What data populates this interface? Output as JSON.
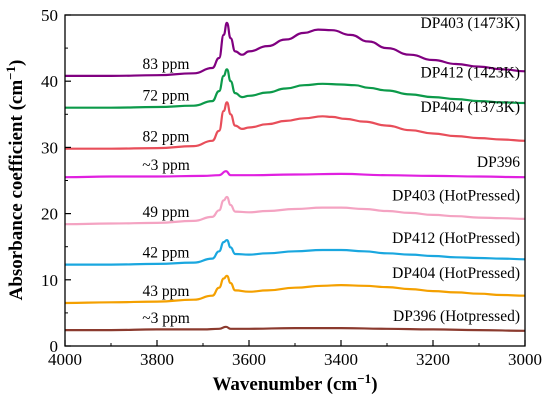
{
  "chart_data": {
    "type": "line",
    "xlabel": "Wavenumber (cm",
    "xlabel_sup": "−1",
    "xlabel_close": ")",
    "ylabel": "Absorbance coefficient (cm",
    "ylabel_sup": "−1",
    "ylabel_close": ")",
    "xlim": [
      4000,
      3000
    ],
    "ylim": [
      0,
      50
    ],
    "xticks": [
      4000,
      3800,
      3600,
      3400,
      3200,
      3000
    ],
    "yticks": [
      0,
      10,
      20,
      30,
      40,
      50
    ],
    "grid": false,
    "series": [
      {
        "name": "DP403 (1473K)",
        "ppm": "83 ppm",
        "color": "#800080",
        "points": [
          [
            4000,
            40.8
          ],
          [
            3900,
            40.8
          ],
          [
            3800,
            40.9
          ],
          [
            3720,
            41.2
          ],
          [
            3680,
            42.0
          ],
          [
            3665,
            43.5
          ],
          [
            3655,
            47.0
          ],
          [
            3648,
            48.8
          ],
          [
            3640,
            46.5
          ],
          [
            3630,
            44.5
          ],
          [
            3615,
            44.0
          ],
          [
            3600,
            44.5
          ],
          [
            3560,
            45.3
          ],
          [
            3520,
            46.3
          ],
          [
            3480,
            47.3
          ],
          [
            3450,
            47.8
          ],
          [
            3420,
            47.7
          ],
          [
            3380,
            47.0
          ],
          [
            3340,
            46.0
          ],
          [
            3300,
            45.0
          ],
          [
            3250,
            44.0
          ],
          [
            3200,
            43.2
          ],
          [
            3150,
            42.6
          ],
          [
            3100,
            42.2
          ],
          [
            3050,
            41.8
          ],
          [
            3000,
            41.5
          ]
        ]
      },
      {
        "name": "DP412 (1423K)",
        "ppm": "72 ppm",
        "color": "#0c9a4a",
        "points": [
          [
            4000,
            36.0
          ],
          [
            3900,
            36.0
          ],
          [
            3800,
            36.1
          ],
          [
            3720,
            36.3
          ],
          [
            3680,
            37.0
          ],
          [
            3665,
            38.5
          ],
          [
            3655,
            40.8
          ],
          [
            3648,
            41.8
          ],
          [
            3640,
            40.0
          ],
          [
            3630,
            38.2
          ],
          [
            3615,
            37.6
          ],
          [
            3600,
            37.8
          ],
          [
            3560,
            38.3
          ],
          [
            3520,
            38.9
          ],
          [
            3480,
            39.4
          ],
          [
            3440,
            39.6
          ],
          [
            3400,
            39.5
          ],
          [
            3370,
            39.4
          ],
          [
            3340,
            39.0
          ],
          [
            3300,
            38.6
          ],
          [
            3250,
            38.0
          ],
          [
            3200,
            37.6
          ],
          [
            3150,
            37.3
          ],
          [
            3100,
            37.0
          ],
          [
            3050,
            36.8
          ],
          [
            3000,
            36.7
          ]
        ]
      },
      {
        "name": "DP404 (1373K)",
        "ppm": "82 ppm",
        "color": "#e84e5a",
        "points": [
          [
            4000,
            29.8
          ],
          [
            3900,
            29.8
          ],
          [
            3800,
            29.9
          ],
          [
            3720,
            30.2
          ],
          [
            3680,
            31.0
          ],
          [
            3665,
            32.5
          ],
          [
            3655,
            35.5
          ],
          [
            3648,
            36.8
          ],
          [
            3640,
            35.0
          ],
          [
            3630,
            33.3
          ],
          [
            3615,
            32.8
          ],
          [
            3600,
            33.0
          ],
          [
            3560,
            33.5
          ],
          [
            3520,
            34.0
          ],
          [
            3480,
            34.4
          ],
          [
            3440,
            34.7
          ],
          [
            3420,
            34.6
          ],
          [
            3390,
            34.3
          ],
          [
            3350,
            33.9
          ],
          [
            3300,
            33.3
          ],
          [
            3250,
            32.6
          ],
          [
            3200,
            32.1
          ],
          [
            3150,
            31.7
          ],
          [
            3100,
            31.4
          ],
          [
            3050,
            31.2
          ],
          [
            3000,
            31.0
          ]
        ]
      },
      {
        "name": "DP396",
        "ppm": "~3 ppm",
        "color": "#e020e0",
        "points": [
          [
            4000,
            25.5
          ],
          [
            3900,
            25.6
          ],
          [
            3800,
            25.6
          ],
          [
            3700,
            25.7
          ],
          [
            3665,
            25.8
          ],
          [
            3650,
            26.4
          ],
          [
            3640,
            25.8
          ],
          [
            3600,
            25.8
          ],
          [
            3500,
            25.9
          ],
          [
            3400,
            26.0
          ],
          [
            3300,
            25.8
          ],
          [
            3200,
            25.7
          ],
          [
            3100,
            25.6
          ],
          [
            3000,
            25.5
          ]
        ]
      },
      {
        "name": "DP403 (HotPressed)",
        "ppm": "49 ppm",
        "color": "#f4a3c2",
        "points": [
          [
            4000,
            18.4
          ],
          [
            3900,
            18.5
          ],
          [
            3800,
            18.6
          ],
          [
            3720,
            18.9
          ],
          [
            3680,
            19.5
          ],
          [
            3665,
            20.5
          ],
          [
            3655,
            22.0
          ],
          [
            3648,
            22.5
          ],
          [
            3640,
            21.3
          ],
          [
            3630,
            20.3
          ],
          [
            3600,
            20.2
          ],
          [
            3560,
            20.4
          ],
          [
            3500,
            20.7
          ],
          [
            3440,
            20.9
          ],
          [
            3400,
            20.9
          ],
          [
            3350,
            20.7
          ],
          [
            3300,
            20.4
          ],
          [
            3250,
            20.1
          ],
          [
            3200,
            19.8
          ],
          [
            3150,
            19.6
          ],
          [
            3100,
            19.4
          ],
          [
            3050,
            19.3
          ],
          [
            3000,
            19.2
          ]
        ]
      },
      {
        "name": "DP412 (HotPressed)",
        "ppm": "42 ppm",
        "color": "#1aa7df",
        "points": [
          [
            4000,
            12.3
          ],
          [
            3900,
            12.3
          ],
          [
            3800,
            12.4
          ],
          [
            3720,
            12.6
          ],
          [
            3680,
            13.2
          ],
          [
            3665,
            14.3
          ],
          [
            3655,
            15.7
          ],
          [
            3648,
            16.0
          ],
          [
            3640,
            14.9
          ],
          [
            3630,
            13.9
          ],
          [
            3600,
            13.8
          ],
          [
            3560,
            14.0
          ],
          [
            3500,
            14.3
          ],
          [
            3440,
            14.5
          ],
          [
            3400,
            14.5
          ],
          [
            3350,
            14.3
          ],
          [
            3300,
            14.0
          ],
          [
            3250,
            13.8
          ],
          [
            3200,
            13.6
          ],
          [
            3150,
            13.4
          ],
          [
            3100,
            13.3
          ],
          [
            3050,
            13.2
          ],
          [
            3000,
            13.1
          ]
        ]
      },
      {
        "name": "DP404 (HotPressed)",
        "ppm": "43 ppm",
        "color": "#f4a000",
        "points": [
          [
            4000,
            6.5
          ],
          [
            3900,
            6.6
          ],
          [
            3800,
            6.7
          ],
          [
            3720,
            7.0
          ],
          [
            3680,
            7.6
          ],
          [
            3665,
            8.8
          ],
          [
            3655,
            10.2
          ],
          [
            3648,
            10.6
          ],
          [
            3640,
            9.5
          ],
          [
            3630,
            8.4
          ],
          [
            3600,
            8.2
          ],
          [
            3560,
            8.4
          ],
          [
            3500,
            8.8
          ],
          [
            3440,
            9.1
          ],
          [
            3400,
            9.2
          ],
          [
            3350,
            9.1
          ],
          [
            3300,
            8.9
          ],
          [
            3250,
            8.6
          ],
          [
            3200,
            8.3
          ],
          [
            3150,
            8.1
          ],
          [
            3100,
            7.9
          ],
          [
            3050,
            7.7
          ],
          [
            3000,
            7.6
          ]
        ]
      },
      {
        "name": "DP396 (Hotpressed)",
        "ppm": "~3 ppm",
        "color": "#8b3a2e",
        "points": [
          [
            4000,
            2.4
          ],
          [
            3900,
            2.4
          ],
          [
            3800,
            2.5
          ],
          [
            3700,
            2.5
          ],
          [
            3665,
            2.6
          ],
          [
            3650,
            2.9
          ],
          [
            3640,
            2.6
          ],
          [
            3600,
            2.6
          ],
          [
            3500,
            2.7
          ],
          [
            3400,
            2.7
          ],
          [
            3300,
            2.6
          ],
          [
            3200,
            2.5
          ],
          [
            3100,
            2.4
          ],
          [
            3000,
            2.3
          ]
        ]
      }
    ]
  }
}
